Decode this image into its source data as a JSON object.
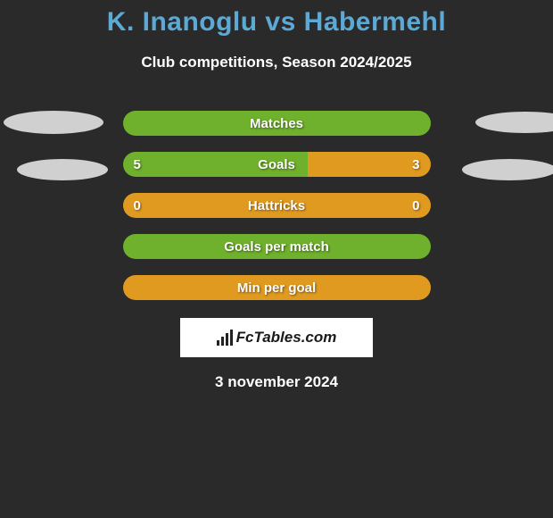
{
  "title": "K. Inanoglu vs Habermehl",
  "subtitle": "Club competitions, Season 2024/2025",
  "colors": {
    "background": "#2a2a2a",
    "title": "#5da9d6",
    "text": "#ffffff",
    "green": "#6fb02c",
    "orange": "#e09a1f",
    "ellipse": "#d0d0d0",
    "branding_bg": "#ffffff",
    "branding_text": "#1a1a1a"
  },
  "stats": [
    {
      "label": "Matches",
      "left_val": "",
      "right_val": "",
      "left_pct": 100,
      "right_pct": 0,
      "left_color": "#6fb02c",
      "right_color": "#e09a1f"
    },
    {
      "label": "Goals",
      "left_val": "5",
      "right_val": "3",
      "left_pct": 60,
      "right_pct": 40,
      "left_color": "#6fb02c",
      "right_color": "#e09a1f"
    },
    {
      "label": "Hattricks",
      "left_val": "0",
      "right_val": "0",
      "left_pct": 100,
      "right_pct": 0,
      "left_color": "#e09a1f",
      "right_color": "#6fb02c"
    },
    {
      "label": "Goals per match",
      "left_val": "",
      "right_val": "",
      "left_pct": 100,
      "right_pct": 0,
      "left_color": "#6fb02c",
      "right_color": "#e09a1f"
    },
    {
      "label": "Min per goal",
      "left_val": "",
      "right_val": "",
      "left_pct": 100,
      "right_pct": 0,
      "left_color": "#e09a1f",
      "right_color": "#6fb02c"
    }
  ],
  "branding": "FcTables.com",
  "date": "3 november 2024"
}
